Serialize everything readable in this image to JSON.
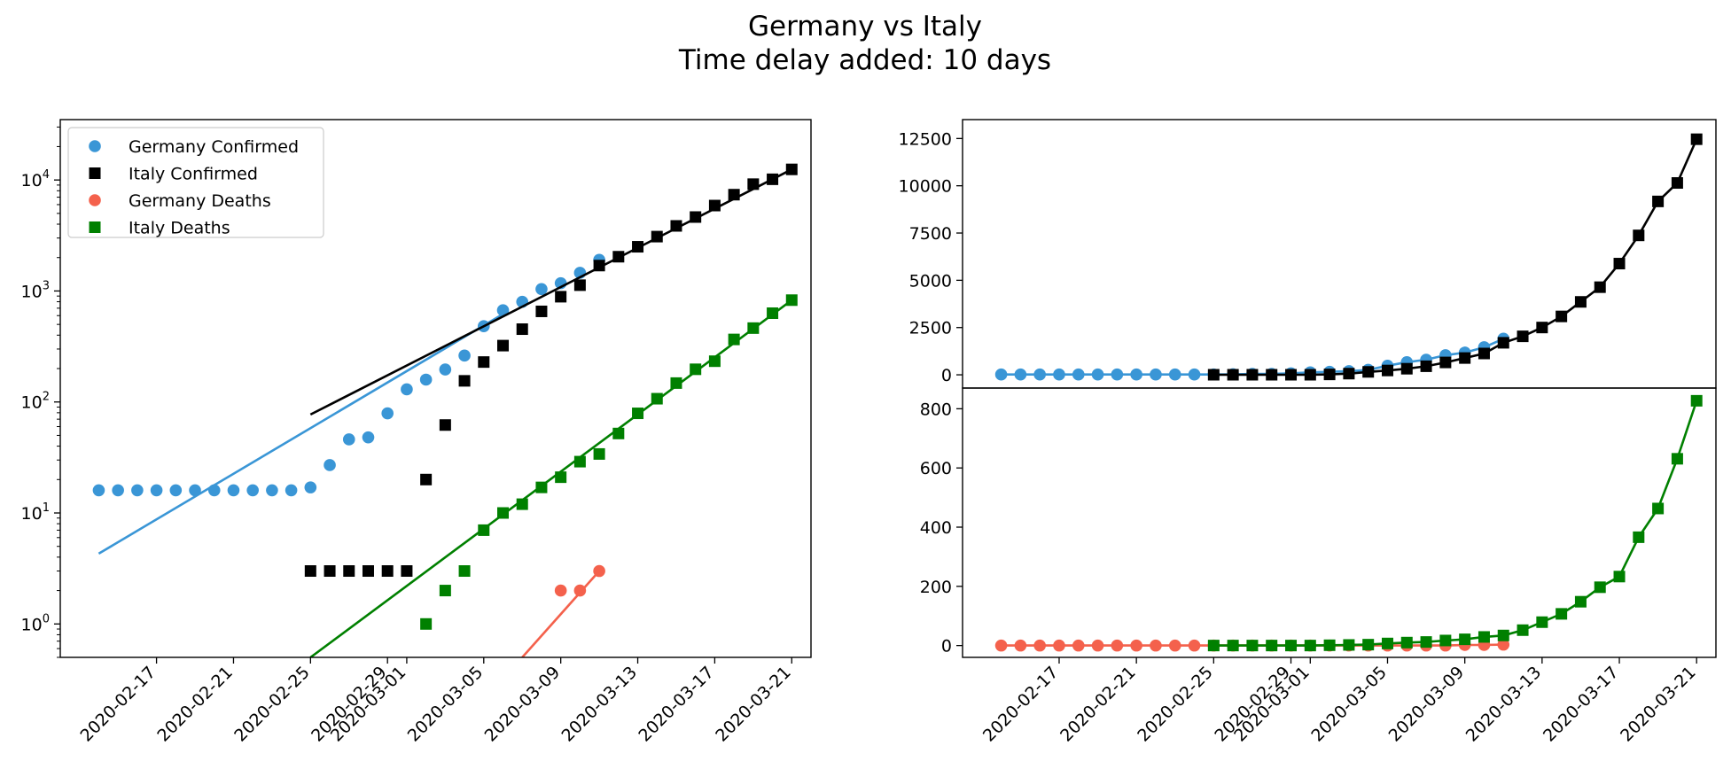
{
  "figure": {
    "title_line1": "Germany vs Italy",
    "title_line2": "Time delay added: 10 days"
  },
  "colors": {
    "germany_confirmed": "#3a96d6",
    "italy_confirmed": "#000000",
    "germany_deaths": "#f4614c",
    "italy_deaths": "#008000"
  },
  "chart_data": [
    {
      "id": "log_panel",
      "type": "scatter",
      "yscale": "log",
      "ylim": [
        0.5,
        35000
      ],
      "xlim": [
        "2020-02-12",
        "2020-03-22"
      ],
      "x_ticks": [
        "2020-02-17",
        "2020-02-21",
        "2020-02-25",
        "2020-02-29",
        "2020-03-01",
        "2020-03-05",
        "2020-03-09",
        "2020-03-13",
        "2020-03-17",
        "2020-03-21"
      ],
      "y_ticks": [
        {
          "value": 1,
          "base": "10",
          "exp": "0"
        },
        {
          "value": 10,
          "base": "10",
          "exp": "1"
        },
        {
          "value": 100,
          "base": "10",
          "exp": "2"
        },
        {
          "value": 1000,
          "base": "10",
          "exp": "3"
        },
        {
          "value": 10000,
          "base": "10",
          "exp": "4"
        }
      ],
      "legend": {
        "position": "upper-left",
        "entries": [
          "Germany Confirmed",
          "Italy Confirmed",
          "Germany Deaths",
          "Italy Deaths"
        ]
      },
      "series": [
        {
          "name": "Germany Confirmed",
          "marker": "circle",
          "color": "#3a96d6",
          "points": [
            [
              "2020-02-14",
              16
            ],
            [
              "2020-02-15",
              16
            ],
            [
              "2020-02-16",
              16
            ],
            [
              "2020-02-17",
              16
            ],
            [
              "2020-02-18",
              16
            ],
            [
              "2020-02-19",
              16
            ],
            [
              "2020-02-20",
              16
            ],
            [
              "2020-02-21",
              16
            ],
            [
              "2020-02-22",
              16
            ],
            [
              "2020-02-23",
              16
            ],
            [
              "2020-02-24",
              16
            ],
            [
              "2020-02-25",
              17
            ],
            [
              "2020-02-26",
              27
            ],
            [
              "2020-02-27",
              46
            ],
            [
              "2020-02-28",
              48
            ],
            [
              "2020-02-29",
              79
            ],
            [
              "2020-03-01",
              130
            ],
            [
              "2020-03-02",
              159
            ],
            [
              "2020-03-03",
              196
            ],
            [
              "2020-03-04",
              262
            ],
            [
              "2020-03-05",
              482
            ],
            [
              "2020-03-06",
              670
            ],
            [
              "2020-03-07",
              799
            ],
            [
              "2020-03-08",
              1040
            ],
            [
              "2020-03-09",
              1176
            ],
            [
              "2020-03-10",
              1457
            ],
            [
              "2020-03-11",
              1908
            ]
          ],
          "fit": [
            [
              "2020-02-14",
              4.3
            ],
            [
              "2020-03-06",
              620
            ]
          ]
        },
        {
          "name": "Italy Confirmed",
          "marker": "square",
          "color": "#000000",
          "points": [
            [
              "2020-02-25",
              3
            ],
            [
              "2020-02-26",
              3
            ],
            [
              "2020-02-27",
              3
            ],
            [
              "2020-02-28",
              3
            ],
            [
              "2020-02-29",
              3
            ],
            [
              "2020-03-01",
              3
            ],
            [
              "2020-03-02",
              20
            ],
            [
              "2020-03-03",
              62
            ],
            [
              "2020-03-04",
              155
            ],
            [
              "2020-03-05",
              229
            ],
            [
              "2020-03-06",
              322
            ],
            [
              "2020-03-07",
              453
            ],
            [
              "2020-03-08",
              655
            ],
            [
              "2020-03-09",
              888
            ],
            [
              "2020-03-10",
              1128
            ],
            [
              "2020-03-11",
              1694
            ],
            [
              "2020-03-12",
              2036
            ],
            [
              "2020-03-13",
              2502
            ],
            [
              "2020-03-14",
              3089
            ],
            [
              "2020-03-15",
              3858
            ],
            [
              "2020-03-16",
              4636
            ],
            [
              "2020-03-17",
              5883
            ],
            [
              "2020-03-18",
              7375
            ],
            [
              "2020-03-19",
              9172
            ],
            [
              "2020-03-20",
              10149
            ],
            [
              "2020-03-21",
              12462
            ]
          ],
          "fit": [
            [
              "2020-02-25",
              77
            ],
            [
              "2020-03-21",
              12462
            ]
          ]
        },
        {
          "name": "Germany Deaths",
          "marker": "circle",
          "color": "#f4614c",
          "points": [
            [
              "2020-03-09",
              2
            ],
            [
              "2020-03-10",
              2
            ],
            [
              "2020-03-11",
              3
            ]
          ],
          "fit": [
            [
              "2020-03-07",
              0.5
            ],
            [
              "2020-03-11",
              3
            ]
          ]
        },
        {
          "name": "Italy Deaths",
          "marker": "square",
          "color": "#008000",
          "points": [
            [
              "2020-03-02",
              1
            ],
            [
              "2020-03-03",
              2
            ],
            [
              "2020-03-04",
              3
            ],
            [
              "2020-03-05",
              7
            ],
            [
              "2020-03-06",
              10
            ],
            [
              "2020-03-07",
              12
            ],
            [
              "2020-03-08",
              17
            ],
            [
              "2020-03-09",
              21
            ],
            [
              "2020-03-10",
              29
            ],
            [
              "2020-03-11",
              34
            ],
            [
              "2020-03-12",
              52
            ],
            [
              "2020-03-13",
              79
            ],
            [
              "2020-03-14",
              107
            ],
            [
              "2020-03-15",
              148
            ],
            [
              "2020-03-16",
              197
            ],
            [
              "2020-03-17",
              233
            ],
            [
              "2020-03-18",
              366
            ],
            [
              "2020-03-19",
              463
            ],
            [
              "2020-03-20",
              631
            ],
            [
              "2020-03-21",
              827
            ]
          ],
          "fit": [
            [
              "2020-02-25",
              0.5
            ],
            [
              "2020-03-21",
              827
            ]
          ]
        }
      ]
    },
    {
      "id": "linear_confirmed_panel",
      "type": "line",
      "yscale": "linear",
      "ylim": [
        -700,
        13500
      ],
      "xlim": [
        "2020-02-12",
        "2020-03-22"
      ],
      "y_ticks": [
        0,
        2500,
        5000,
        7500,
        10000,
        12500
      ],
      "series": [
        {
          "name": "Germany Confirmed",
          "marker": "circle",
          "color": "#3a96d6",
          "connect": true,
          "points": [
            [
              "2020-02-14",
              16
            ],
            [
              "2020-02-15",
              16
            ],
            [
              "2020-02-16",
              16
            ],
            [
              "2020-02-17",
              16
            ],
            [
              "2020-02-18",
              16
            ],
            [
              "2020-02-19",
              16
            ],
            [
              "2020-02-20",
              16
            ],
            [
              "2020-02-21",
              16
            ],
            [
              "2020-02-22",
              16
            ],
            [
              "2020-02-23",
              16
            ],
            [
              "2020-02-24",
              16
            ],
            [
              "2020-02-25",
              17
            ],
            [
              "2020-02-26",
              27
            ],
            [
              "2020-02-27",
              46
            ],
            [
              "2020-02-28",
              48
            ],
            [
              "2020-02-29",
              79
            ],
            [
              "2020-03-01",
              130
            ],
            [
              "2020-03-02",
              159
            ],
            [
              "2020-03-03",
              196
            ],
            [
              "2020-03-04",
              262
            ],
            [
              "2020-03-05",
              482
            ],
            [
              "2020-03-06",
              670
            ],
            [
              "2020-03-07",
              799
            ],
            [
              "2020-03-08",
              1040
            ],
            [
              "2020-03-09",
              1176
            ],
            [
              "2020-03-10",
              1457
            ],
            [
              "2020-03-11",
              1908
            ]
          ]
        },
        {
          "name": "Italy Confirmed",
          "marker": "square",
          "color": "#000000",
          "connect": true,
          "points": [
            [
              "2020-02-25",
              3
            ],
            [
              "2020-02-26",
              3
            ],
            [
              "2020-02-27",
              3
            ],
            [
              "2020-02-28",
              3
            ],
            [
              "2020-02-29",
              3
            ],
            [
              "2020-03-01",
              3
            ],
            [
              "2020-03-02",
              20
            ],
            [
              "2020-03-03",
              62
            ],
            [
              "2020-03-04",
              155
            ],
            [
              "2020-03-05",
              229
            ],
            [
              "2020-03-06",
              322
            ],
            [
              "2020-03-07",
              453
            ],
            [
              "2020-03-08",
              655
            ],
            [
              "2020-03-09",
              888
            ],
            [
              "2020-03-10",
              1128
            ],
            [
              "2020-03-11",
              1694
            ],
            [
              "2020-03-12",
              2036
            ],
            [
              "2020-03-13",
              2502
            ],
            [
              "2020-03-14",
              3089
            ],
            [
              "2020-03-15",
              3858
            ],
            [
              "2020-03-16",
              4636
            ],
            [
              "2020-03-17",
              5883
            ],
            [
              "2020-03-18",
              7375
            ],
            [
              "2020-03-19",
              9172
            ],
            [
              "2020-03-20",
              10149
            ],
            [
              "2020-03-21",
              12462
            ]
          ]
        }
      ]
    },
    {
      "id": "linear_deaths_panel",
      "type": "line",
      "yscale": "linear",
      "ylim": [
        -40,
        870
      ],
      "xlim": [
        "2020-02-12",
        "2020-03-22"
      ],
      "x_ticks": [
        "2020-02-17",
        "2020-02-21",
        "2020-02-25",
        "2020-02-29",
        "2020-03-01",
        "2020-03-05",
        "2020-03-09",
        "2020-03-13",
        "2020-03-17",
        "2020-03-21"
      ],
      "y_ticks": [
        0,
        200,
        400,
        600,
        800
      ],
      "series": [
        {
          "name": "Germany Deaths",
          "marker": "circle",
          "color": "#f4614c",
          "connect": true,
          "points": [
            [
              "2020-02-14",
              0
            ],
            [
              "2020-02-15",
              0
            ],
            [
              "2020-02-16",
              0
            ],
            [
              "2020-02-17",
              0
            ],
            [
              "2020-02-18",
              0
            ],
            [
              "2020-02-19",
              0
            ],
            [
              "2020-02-20",
              0
            ],
            [
              "2020-02-21",
              0
            ],
            [
              "2020-02-22",
              0
            ],
            [
              "2020-02-23",
              0
            ],
            [
              "2020-02-24",
              0
            ],
            [
              "2020-02-25",
              0
            ],
            [
              "2020-02-26",
              0
            ],
            [
              "2020-02-27",
              0
            ],
            [
              "2020-02-28",
              0
            ],
            [
              "2020-02-29",
              0
            ],
            [
              "2020-03-01",
              0
            ],
            [
              "2020-03-02",
              0
            ],
            [
              "2020-03-03",
              0
            ],
            [
              "2020-03-04",
              0
            ],
            [
              "2020-03-05",
              0
            ],
            [
              "2020-03-06",
              0
            ],
            [
              "2020-03-07",
              0
            ],
            [
              "2020-03-08",
              0
            ],
            [
              "2020-03-09",
              2
            ],
            [
              "2020-03-10",
              2
            ],
            [
              "2020-03-11",
              3
            ]
          ]
        },
        {
          "name": "Italy Deaths",
          "marker": "square",
          "color": "#008000",
          "connect": true,
          "points": [
            [
              "2020-02-25",
              0
            ],
            [
              "2020-02-26",
              0
            ],
            [
              "2020-02-27",
              0
            ],
            [
              "2020-02-28",
              0
            ],
            [
              "2020-02-29",
              0
            ],
            [
              "2020-03-01",
              0
            ],
            [
              "2020-03-02",
              1
            ],
            [
              "2020-03-03",
              2
            ],
            [
              "2020-03-04",
              3
            ],
            [
              "2020-03-05",
              7
            ],
            [
              "2020-03-06",
              10
            ],
            [
              "2020-03-07",
              12
            ],
            [
              "2020-03-08",
              17
            ],
            [
              "2020-03-09",
              21
            ],
            [
              "2020-03-10",
              29
            ],
            [
              "2020-03-11",
              34
            ],
            [
              "2020-03-12",
              52
            ],
            [
              "2020-03-13",
              79
            ],
            [
              "2020-03-14",
              107
            ],
            [
              "2020-03-15",
              148
            ],
            [
              "2020-03-16",
              197
            ],
            [
              "2020-03-17",
              233
            ],
            [
              "2020-03-18",
              366
            ],
            [
              "2020-03-19",
              463
            ],
            [
              "2020-03-20",
              631
            ],
            [
              "2020-03-21",
              827
            ]
          ]
        }
      ]
    }
  ]
}
